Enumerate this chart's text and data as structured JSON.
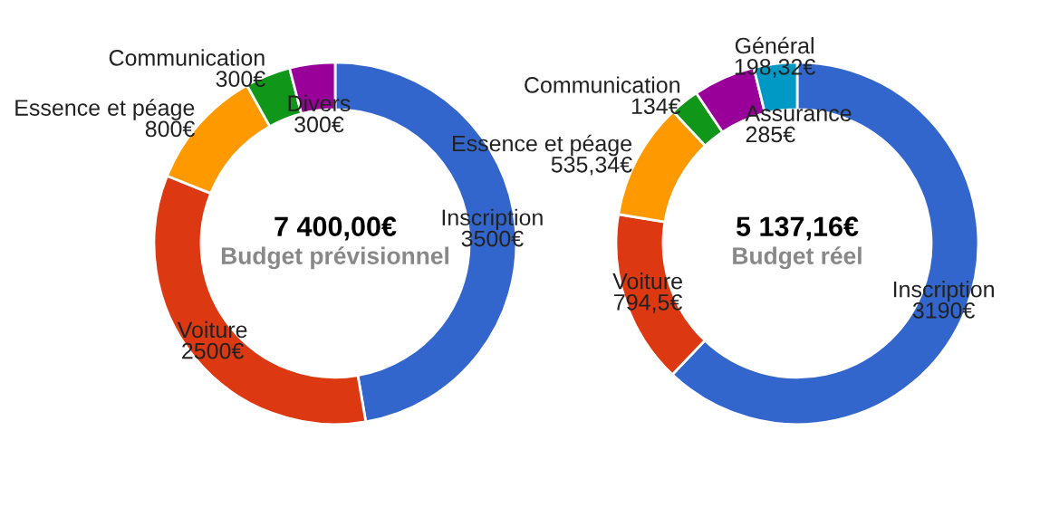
{
  "chart_data": [
    {
      "type": "donut",
      "title": "7 400,00€",
      "subtitle": "Budget prévisionnel",
      "categories": [
        "Inscription",
        "Voiture",
        "Essence et péage",
        "Communication",
        "Divers"
      ],
      "values": [
        3500,
        2500,
        800,
        300,
        300
      ],
      "value_labels": [
        "3500€",
        "2500€",
        "800€",
        "300€",
        "300€"
      ],
      "colors": [
        "#3366cc",
        "#dc3912",
        "#ff9900",
        "#109618",
        "#990099"
      ],
      "legend": false
    },
    {
      "type": "donut",
      "title": "5 137,16€",
      "subtitle": "Budget réel",
      "categories": [
        "Inscription",
        "Voiture",
        "Essence et péage",
        "Communication",
        "Assurance",
        "Général"
      ],
      "values": [
        3190,
        794.5,
        535.34,
        134,
        285,
        198.32
      ],
      "value_labels": [
        "3190€",
        "794,5€",
        "535,34€",
        "134€",
        "285€",
        "198,32€"
      ],
      "colors": [
        "#3366cc",
        "#dc3912",
        "#ff9900",
        "#109618",
        "#990099",
        "#0099c6"
      ],
      "legend": false
    }
  ]
}
